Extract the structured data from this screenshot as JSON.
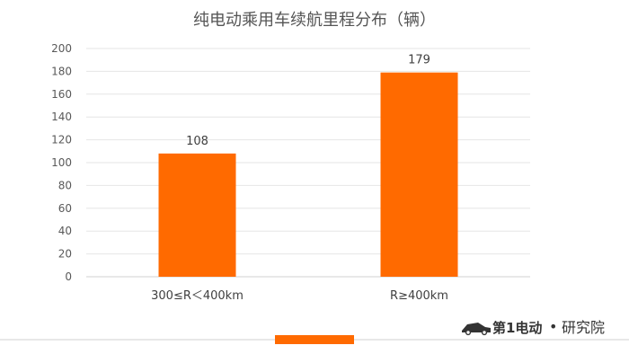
{
  "chart_data": {
    "type": "bar",
    "title": "纯电动乘用车续航里程分布（辆）",
    "categories": [
      "300≤R＜400km",
      "R≥400km"
    ],
    "values": [
      108,
      179
    ],
    "ylim": [
      0,
      200
    ],
    "yticks": [
      0,
      20,
      40,
      60,
      80,
      100,
      120,
      140,
      160,
      180,
      200
    ],
    "grid": true,
    "bar_color": "#FF6A00",
    "legend": "bottom"
  },
  "brand": {
    "logo_text": "第1电动",
    "org_text": "研究院",
    "separator": "•"
  }
}
